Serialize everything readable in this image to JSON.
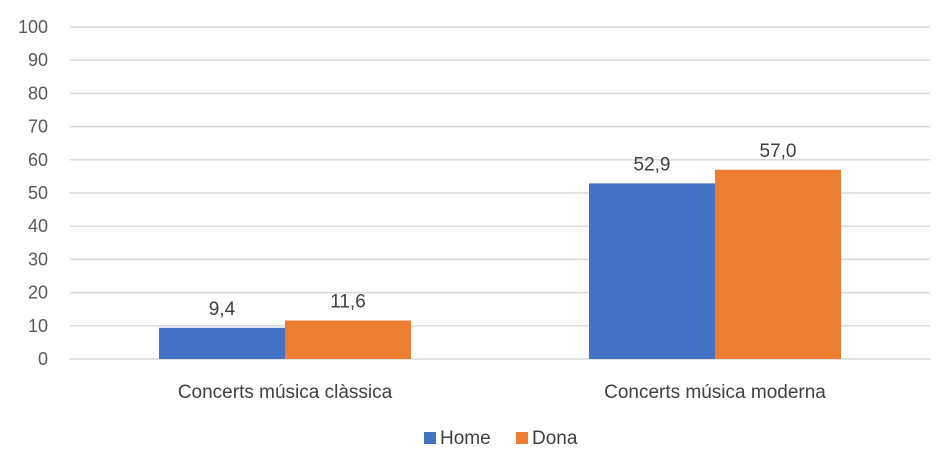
{
  "chart_data": {
    "type": "bar",
    "categories": [
      "Concerts música clàssica",
      "Concerts música moderna"
    ],
    "series": [
      {
        "name": "Home",
        "values": [
          9.4,
          52.9
        ],
        "labels": [
          "9,4",
          "52,9"
        ],
        "color": "#4472c4"
      },
      {
        "name": "Dona",
        "values": [
          11.6,
          57.0
        ],
        "labels": [
          "11,6",
          "57,0"
        ],
        "color": "#ed7d31"
      }
    ],
    "ylim": [
      0,
      100
    ],
    "yticks": [
      0,
      10,
      20,
      30,
      40,
      50,
      60,
      70,
      80,
      90,
      100
    ],
    "grid": true,
    "legend_position": "bottom",
    "title": "",
    "xlabel": "",
    "ylabel": ""
  }
}
